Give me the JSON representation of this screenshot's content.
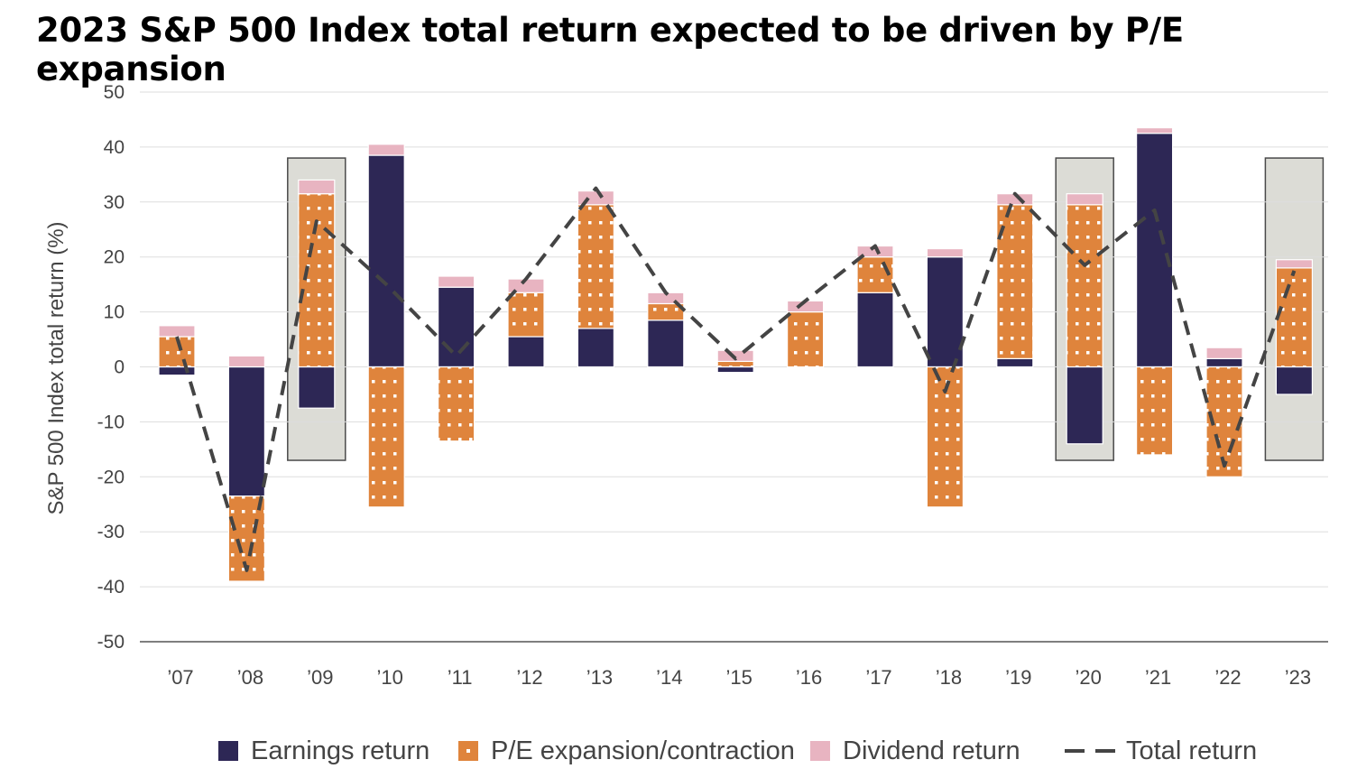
{
  "title": "2023 S&P 500 Index total return expected to be driven by P/E expansion",
  "chart_data": {
    "type": "bar",
    "stacked": true,
    "categories": [
      "’07",
      "’08",
      "’09",
      "’10",
      "’11",
      "’12",
      "’13",
      "’14",
      "’15",
      "’16",
      "’17",
      "’18",
      "’19",
      "’20",
      "’21",
      "’22",
      "’23"
    ],
    "series": [
      {
        "name": "Earnings return",
        "color": "#2d2755",
        "values": [
          -1.5,
          -23.5,
          -7.5,
          38.5,
          14.5,
          5.5,
          7,
          8.5,
          -1,
          0,
          13.5,
          20,
          1.5,
          -14,
          42.5,
          1.5,
          -5
        ]
      },
      {
        "name": "P/E expansion/contraction",
        "color": "#df843c",
        "values": [
          5.5,
          -15.5,
          31.5,
          -25.5,
          -13.5,
          8,
          22.5,
          3,
          1,
          10,
          6.5,
          -25.5,
          28,
          29.5,
          -16,
          -20,
          18
        ]
      },
      {
        "name": "Dividend return",
        "color": "#e8b4c1",
        "values": [
          2,
          2,
          2.5,
          2,
          2,
          2.5,
          2.5,
          2,
          2,
          2,
          2,
          1.5,
          2,
          2,
          1,
          2,
          1.5
        ]
      }
    ],
    "total_return": {
      "name": "Total return",
      "values": [
        5.5,
        -37,
        26.5,
        15,
        2,
        16,
        32.5,
        13.5,
        1.5,
        12,
        22,
        -4.5,
        31.5,
        18.5,
        28.5,
        -18,
        17.5
      ]
    },
    "highlighted": [
      "’09",
      "’20",
      "’23"
    ],
    "highlight_range": [
      -17,
      38
    ],
    "ylabel": "S&P 500 Index total return (%)",
    "yticks": [
      50,
      40,
      30,
      20,
      10,
      0,
      -10,
      -20,
      -30,
      -40,
      -50
    ],
    "ylim": [
      -50,
      50
    ],
    "grid": true,
    "legend_position": "bottom"
  },
  "legend": {
    "earnings": "Earnings return",
    "pe": "P/E expansion/contraction",
    "dividend": "Dividend return",
    "total": "Total return"
  }
}
